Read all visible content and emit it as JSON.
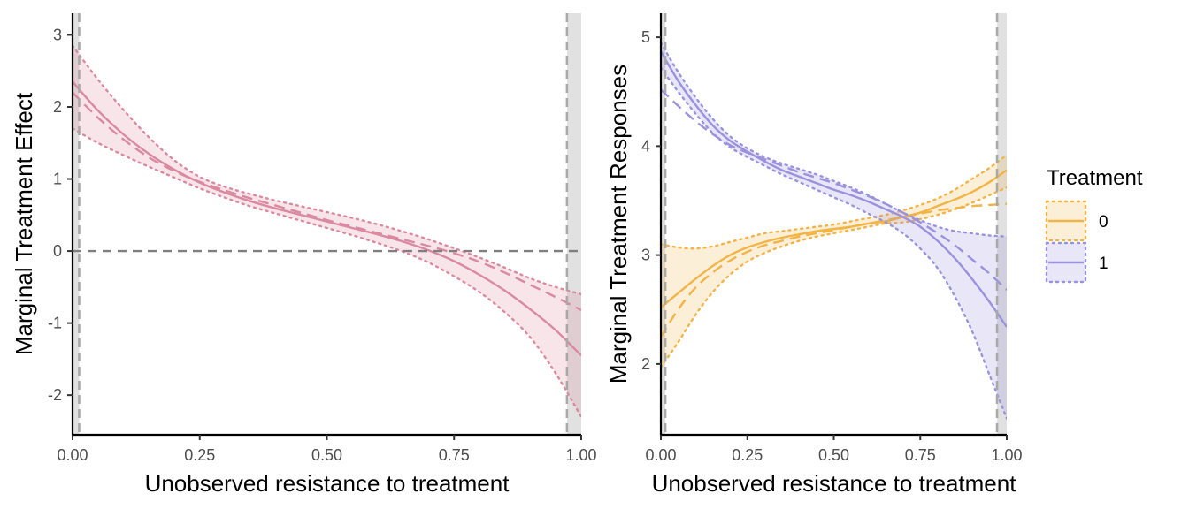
{
  "chart_data": [
    {
      "type": "line",
      "xlabel": "Unobserved resistance to treatment",
      "ylabel": "Marginal Treatment Effect",
      "xlim": [
        0,
        1
      ],
      "ylim": [
        -2.55,
        3.3
      ],
      "xticks": [
        0,
        0.25,
        0.5,
        0.75,
        1
      ],
      "xtick_labels": [
        "0.00",
        "0.25",
        "0.50",
        "0.75",
        "1.00"
      ],
      "yticks": [
        -2,
        -1,
        0,
        1,
        2,
        3
      ],
      "ytick_labels": [
        "-2",
        "-1",
        "0",
        "1",
        "2",
        "3"
      ],
      "grid": false,
      "reference_hline": 0,
      "support_vlines": [
        0.013,
        0.972
      ],
      "shaded_regions": [
        [
          0,
          0.013
        ],
        [
          0.972,
          1
        ]
      ],
      "color": "#D98AA0",
      "x": [
        0,
        0.05,
        0.1,
        0.15,
        0.2,
        0.25,
        0.3,
        0.35,
        0.4,
        0.45,
        0.5,
        0.55,
        0.6,
        0.65,
        0.7,
        0.75,
        0.8,
        0.85,
        0.9,
        0.95,
        1
      ],
      "series": [
        {
          "style": "solid",
          "values": [
            2.35,
            1.95,
            1.62,
            1.35,
            1.13,
            0.95,
            0.81,
            0.69,
            0.59,
            0.5,
            0.41,
            0.32,
            0.23,
            0.13,
            0.01,
            -0.14,
            -0.33,
            -0.55,
            -0.81,
            -1.1,
            -1.45
          ]
        },
        {
          "style": "dashed",
          "values": [
            2.2,
            1.85,
            1.55,
            1.3,
            1.11,
            0.96,
            0.84,
            0.73,
            0.63,
            0.53,
            0.43,
            0.34,
            0.25,
            0.16,
            0.07,
            -0.03,
            -0.15,
            -0.3,
            -0.47,
            -0.64,
            -0.82
          ]
        },
        {
          "style": "band_upper",
          "values": [
            2.85,
            2.38,
            1.96,
            1.58,
            1.26,
            1.03,
            0.89,
            0.79,
            0.7,
            0.62,
            0.54,
            0.46,
            0.37,
            0.27,
            0.16,
            0.04,
            -0.09,
            -0.23,
            -0.38,
            -0.5,
            -0.6
          ]
        },
        {
          "style": "band_lower",
          "values": [
            1.7,
            1.5,
            1.33,
            1.17,
            1.02,
            0.87,
            0.74,
            0.62,
            0.52,
            0.42,
            0.32,
            0.22,
            0.11,
            -0.01,
            -0.16,
            -0.35,
            -0.57,
            -0.85,
            -1.2,
            -1.7,
            -2.3
          ]
        }
      ]
    },
    {
      "type": "line",
      "xlabel": "Unobserved resistance to treatment",
      "ylabel": "Marginal Treatment Responses",
      "xlim": [
        0,
        1
      ],
      "ylim": [
        1.35,
        5.22
      ],
      "xticks": [
        0,
        0.25,
        0.5,
        0.75,
        1
      ],
      "xtick_labels": [
        "0.00",
        "0.25",
        "0.50",
        "0.75",
        "1.00"
      ],
      "yticks": [
        2,
        3,
        4,
        5
      ],
      "ytick_labels": [
        "2",
        "3",
        "4",
        "5"
      ],
      "grid": false,
      "support_vlines": [
        0.013,
        0.972
      ],
      "shaded_regions": [
        [
          0,
          0.013
        ],
        [
          0.972,
          1
        ]
      ],
      "legend": {
        "title": "Treatment",
        "placement": "right",
        "entries": [
          "0",
          "1"
        ]
      },
      "x": [
        0,
        0.05,
        0.1,
        0.15,
        0.2,
        0.25,
        0.3,
        0.35,
        0.4,
        0.45,
        0.5,
        0.55,
        0.6,
        0.65,
        0.7,
        0.75,
        0.8,
        0.85,
        0.9,
        0.95,
        1
      ],
      "series": [
        {
          "name": "0",
          "color": "#F2B447",
          "solid": [
            2.52,
            2.65,
            2.78,
            2.9,
            3.0,
            3.07,
            3.12,
            3.16,
            3.19,
            3.22,
            3.24,
            3.26,
            3.29,
            3.31,
            3.35,
            3.39,
            3.45,
            3.51,
            3.58,
            3.67,
            3.78
          ],
          "dashed": [
            2.25,
            2.5,
            2.7,
            2.84,
            2.95,
            3.03,
            3.09,
            3.13,
            3.17,
            3.2,
            3.23,
            3.26,
            3.29,
            3.32,
            3.35,
            3.38,
            3.41,
            3.43,
            3.45,
            3.46,
            3.47
          ],
          "band_upper": [
            3.1,
            3.07,
            3.06,
            3.08,
            3.12,
            3.16,
            3.2,
            3.22,
            3.24,
            3.26,
            3.28,
            3.31,
            3.34,
            3.37,
            3.41,
            3.46,
            3.52,
            3.6,
            3.7,
            3.8,
            3.92
          ],
          "band_lower": [
            1.97,
            2.2,
            2.45,
            2.66,
            2.82,
            2.94,
            3.02,
            3.08,
            3.13,
            3.17,
            3.2,
            3.23,
            3.26,
            3.29,
            3.3,
            3.33,
            3.37,
            3.42,
            3.48,
            3.55,
            3.62
          ]
        },
        {
          "name": "1",
          "color": "#9A92DC",
          "solid": [
            4.87,
            4.6,
            4.38,
            4.19,
            4.05,
            3.95,
            3.86,
            3.78,
            3.72,
            3.66,
            3.6,
            3.55,
            3.49,
            3.42,
            3.35,
            3.26,
            3.13,
            2.97,
            2.78,
            2.57,
            2.34
          ],
          "dashed": [
            4.52,
            4.37,
            4.23,
            4.11,
            4.01,
            3.94,
            3.88,
            3.82,
            3.76,
            3.71,
            3.66,
            3.6,
            3.54,
            3.47,
            3.39,
            3.3,
            3.2,
            3.09,
            2.96,
            2.83,
            2.68
          ],
          "band_upper": [
            4.95,
            4.68,
            4.45,
            4.25,
            4.09,
            3.98,
            3.9,
            3.84,
            3.79,
            3.74,
            3.68,
            3.62,
            3.55,
            3.47,
            3.39,
            3.32,
            3.26,
            3.22,
            3.2,
            3.18,
            3.17
          ],
          "band_lower": [
            4.72,
            4.5,
            4.3,
            4.12,
            3.99,
            3.9,
            3.82,
            3.74,
            3.67,
            3.6,
            3.53,
            3.46,
            3.38,
            3.3,
            3.2,
            3.06,
            2.88,
            2.62,
            2.3,
            1.9,
            1.5
          ]
        }
      ]
    }
  ]
}
